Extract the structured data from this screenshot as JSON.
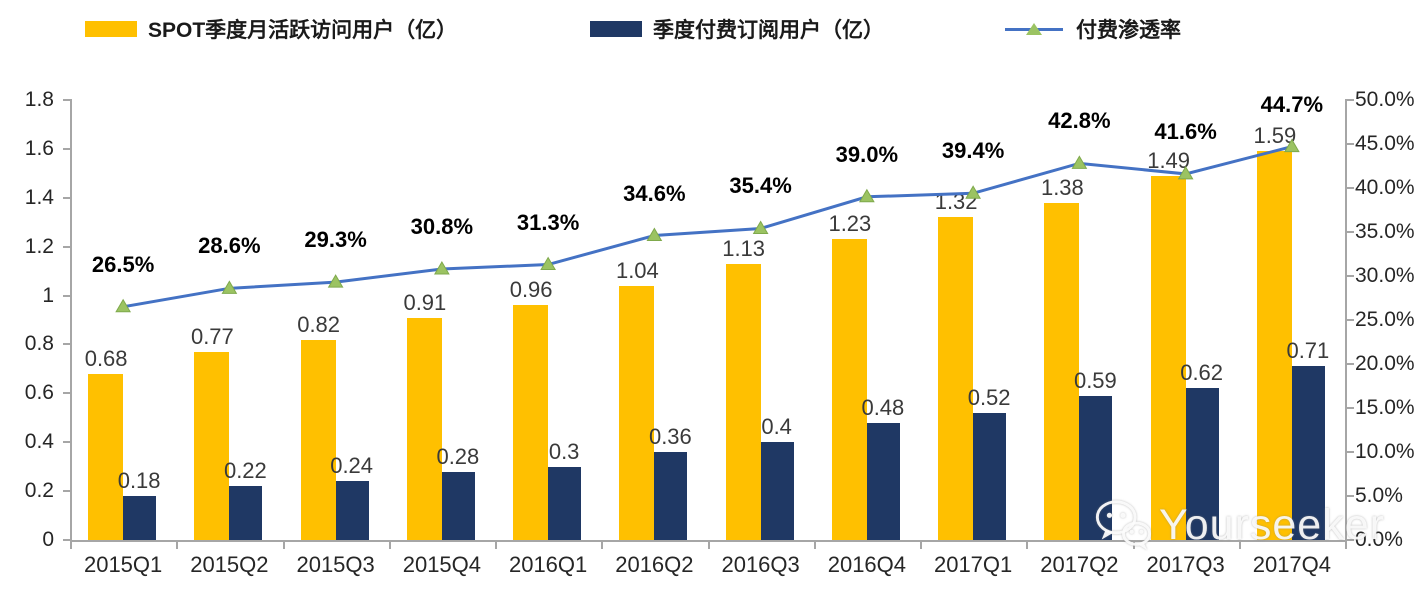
{
  "legend": [
    {
      "label": "SPOT季度月活跃访问用户（亿）",
      "color": "#FFC000",
      "type": "bar"
    },
    {
      "label": "季度付费订阅用户（亿）",
      "color": "#1F3864",
      "type": "bar"
    },
    {
      "label": "付费渗透率",
      "color": "#4472C4",
      "marker_color": "#9BC362",
      "type": "line"
    }
  ],
  "chart_data": {
    "type": "bar",
    "categories": [
      "2015Q1",
      "2015Q2",
      "2015Q3",
      "2015Q4",
      "2016Q1",
      "2016Q2",
      "2016Q3",
      "2016Q4",
      "2017Q1",
      "2017Q2",
      "2017Q3",
      "2017Q4"
    ],
    "series": [
      {
        "name": "SPOT季度月活跃访问用户（亿）",
        "type": "bar",
        "axis": "left",
        "color": "#FFC000",
        "values": [
          0.68,
          0.77,
          0.82,
          0.91,
          0.96,
          1.04,
          1.13,
          1.23,
          1.32,
          1.38,
          1.49,
          1.59
        ],
        "labels": [
          "0.68",
          "0.77",
          "0.82",
          "0.91",
          "0.96",
          "1.04",
          "1.13",
          "1.23",
          "1.32",
          "1.38",
          "1.49",
          "1.59"
        ]
      },
      {
        "name": "季度付费订阅用户（亿）",
        "type": "bar",
        "axis": "left",
        "color": "#1F3864",
        "values": [
          0.18,
          0.22,
          0.24,
          0.28,
          0.3,
          0.36,
          0.4,
          0.48,
          0.52,
          0.59,
          0.62,
          0.71
        ],
        "labels": [
          "0.18",
          "0.22",
          "0.24",
          "0.28",
          "0.3",
          "0.36",
          "0.4",
          "0.48",
          "0.52",
          "0.59",
          "0.62",
          "0.71"
        ]
      },
      {
        "name": "付费渗透率",
        "type": "line",
        "axis": "right",
        "color": "#4472C4",
        "marker": "triangle",
        "marker_color": "#9BC362",
        "values": [
          26.5,
          28.6,
          29.3,
          30.8,
          31.3,
          34.6,
          35.4,
          39.0,
          39.4,
          42.8,
          41.6,
          44.7
        ],
        "labels": [
          "26.5%",
          "28.6%",
          "29.3%",
          "30.8%",
          "31.3%",
          "34.6%",
          "35.4%",
          "39.0%",
          "39.4%",
          "42.8%",
          "41.6%",
          "44.7%"
        ]
      }
    ],
    "left_axis": {
      "min": 0,
      "max": 1.8,
      "step": 0.2,
      "ticks": [
        "0",
        "0.2",
        "0.4",
        "0.6",
        "0.8",
        "1",
        "1.2",
        "1.4",
        "1.6",
        "1.8"
      ]
    },
    "right_axis": {
      "min": 0,
      "max": 50,
      "step": 5,
      "ticks": [
        "0.0%",
        "5.0%",
        "10.0%",
        "15.0%",
        "20.0%",
        "25.0%",
        "30.0%",
        "35.0%",
        "40.0%",
        "45.0%",
        "50.0%"
      ]
    },
    "title": "",
    "xlabel": "",
    "ylabel": "",
    "grid": false,
    "legend_position": "top"
  },
  "watermark": {
    "text": "Yourseeker",
    "icon": "wechat-icon"
  }
}
